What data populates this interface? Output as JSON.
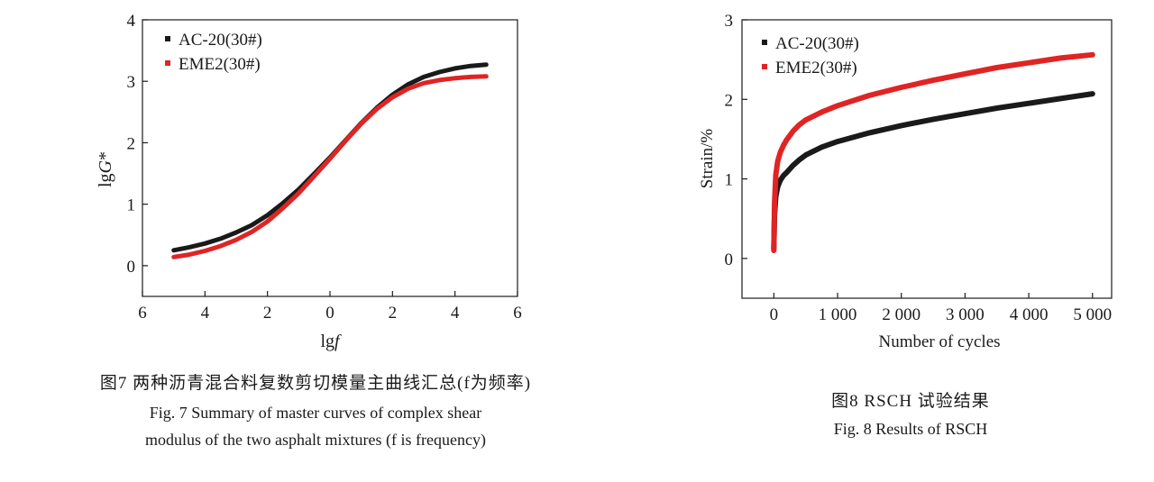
{
  "chart_data": [
    {
      "type": "line",
      "xlabel": "lgf",
      "ylabel": "lgG*",
      "x_tick_labels": [
        "6",
        "4",
        "2",
        "0",
        "2",
        "4",
        "6"
      ],
      "y_tick_labels": [
        "0",
        "1",
        "2",
        "3",
        "4"
      ],
      "xlim": [
        -6,
        6
      ],
      "ylim": [
        -0.5,
        4
      ],
      "legend_position": "top-left",
      "series": [
        {
          "name": "AC-20(30#)",
          "color": "#1a1a1a",
          "x": [
            -5,
            -4.5,
            -4,
            -3.5,
            -3,
            -2.5,
            -2,
            -1.5,
            -1,
            -0.5,
            0,
            0.5,
            1,
            1.5,
            2,
            2.5,
            3,
            3.5,
            4,
            4.5,
            5
          ],
          "y": [
            0.25,
            0.3,
            0.36,
            0.44,
            0.54,
            0.66,
            0.82,
            1.02,
            1.24,
            1.5,
            1.76,
            2.04,
            2.32,
            2.57,
            2.78,
            2.95,
            3.07,
            3.15,
            3.21,
            3.25,
            3.27
          ]
        },
        {
          "name": "EME2(30#)",
          "color": "#e02424",
          "x": [
            -5,
            -4.5,
            -4,
            -3.5,
            -3,
            -2.5,
            -2,
            -1.5,
            -1,
            -0.5,
            0,
            0.5,
            1,
            1.5,
            2,
            2.5,
            3,
            3.5,
            4,
            4.5,
            5
          ],
          "y": [
            0.14,
            0.18,
            0.24,
            0.32,
            0.42,
            0.55,
            0.72,
            0.94,
            1.18,
            1.46,
            1.74,
            2.03,
            2.31,
            2.55,
            2.74,
            2.88,
            2.97,
            3.02,
            3.05,
            3.07,
            3.08
          ]
        }
      ],
      "caption_cn": "图7  两种沥青混合料复数剪切模量主曲线汇总(f为频率)",
      "caption_en_line1": "Fig. 7  Summary of master curves of complex shear",
      "caption_en_line2": "modulus of the two asphalt mixtures (f is frequency)"
    },
    {
      "type": "line",
      "xlabel": "Number of cycles",
      "ylabel": "Strain/%",
      "x_ticks": [
        0,
        1000,
        2000,
        3000,
        4000,
        5000
      ],
      "x_tick_labels": [
        "0",
        "1 000",
        "2 000",
        "3 000",
        "4 000",
        "5 000"
      ],
      "y_tick_labels": [
        "0",
        "1",
        "2",
        "3"
      ],
      "xlim": [
        -500,
        5300
      ],
      "ylim": [
        -0.5,
        3
      ],
      "legend_position": "top-left",
      "series": [
        {
          "name": "AC-20(30#)",
          "color": "#1a1a1a",
          "x": [
            0,
            10,
            30,
            60,
            100,
            150,
            200,
            300,
            400,
            500,
            750,
            1000,
            1500,
            2000,
            2500,
            3000,
            3500,
            4000,
            4500,
            5000
          ],
          "y": [
            0.12,
            0.55,
            0.78,
            0.9,
            0.98,
            1.04,
            1.08,
            1.17,
            1.24,
            1.3,
            1.4,
            1.47,
            1.58,
            1.67,
            1.75,
            1.82,
            1.89,
            1.95,
            2.01,
            2.07
          ]
        },
        {
          "name": "EME2(30#)",
          "color": "#e02424",
          "x": [
            0,
            10,
            30,
            60,
            100,
            150,
            200,
            300,
            400,
            500,
            750,
            1000,
            1500,
            2000,
            2500,
            3000,
            3500,
            4000,
            4500,
            5000
          ],
          "y": [
            0.1,
            0.7,
            1.05,
            1.22,
            1.33,
            1.42,
            1.49,
            1.6,
            1.68,
            1.74,
            1.84,
            1.92,
            2.05,
            2.15,
            2.24,
            2.32,
            2.4,
            2.46,
            2.52,
            2.56
          ]
        }
      ],
      "caption_cn": "图8  RSCH 试验结果",
      "caption_en": "Fig. 8  Results of RSCH"
    }
  ]
}
